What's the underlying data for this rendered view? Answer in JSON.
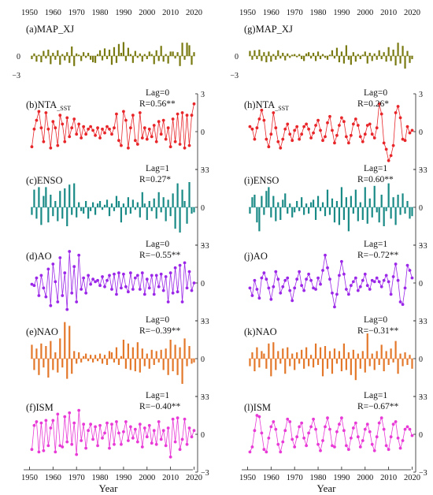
{
  "figure": {
    "x_tick_labels": [
      "1950",
      "1960",
      "1970",
      "1980",
      "1990",
      "2000",
      "2010",
      "2020"
    ],
    "xlabel": "Year"
  },
  "chart_data": [
    {
      "id": "a",
      "col": 0,
      "row": 0,
      "type": "bar",
      "label": "(a)MAP_XJ",
      "color": "#7a7a12",
      "xlim": [
        1950,
        2020
      ],
      "ylim": [
        -3,
        3
      ],
      "x_start": 1951,
      "values": [
        -0.5,
        0.4,
        -0.9,
        0.2,
        -1.0,
        0.8,
        -0.4,
        1.0,
        -1.3,
        0.5,
        -0.6,
        0.9,
        -1.4,
        0.3,
        -0.7,
        0.6,
        -1.1,
        1.5,
        -1.6,
        0.4,
        0.2,
        -0.8,
        0.6,
        -0.3,
        0.5,
        -0.6,
        -1.0,
        -1.1,
        0.3,
        0.9,
        -0.7,
        1.2,
        -0.5,
        1.0,
        -1.4,
        1.4,
        -1.1,
        1.9,
        0.5,
        2.2,
        -0.8,
        1.3,
        0.3,
        -1.1,
        0.8,
        -0.3,
        0.4,
        -0.9,
        0.3,
        -0.5,
        0.7,
        0.3,
        -1.3,
        0.9,
        -0.8,
        1.6,
        -0.9,
        0.3,
        -1.2,
        0.7,
        0.7,
        -0.4,
        0.6,
        -1.6,
        2.1,
        -0.6,
        2.1,
        1.7,
        -1.4,
        0.6
      ]
    },
    {
      "id": "b",
      "col": 0,
      "row": 1,
      "type": "line",
      "label": "(b)NTA_SST",
      "lag": "Lag=0",
      "r": "R=0.56**",
      "color": "#e8262a",
      "xlim": [
        1950,
        2020
      ],
      "ylim": [
        -3,
        3
      ],
      "x_start": 1951,
      "values": [
        -1.2,
        0.2,
        0.9,
        1.6,
        0.3,
        -0.8,
        1.5,
        0.2,
        -1.3,
        0.8,
        0.3,
        -1.1,
        1.3,
        0.6,
        -0.8,
        1.1,
        -0.4,
        0.3,
        1.0,
        -0.2,
        0.6,
        -0.5,
        0.4,
        -0.2,
        0.2,
        0.4,
        0.1,
        -0.3,
        0.3,
        -0.5,
        0.2,
        -0.1,
        0.4,
        0.2,
        -0.2,
        0.3,
        1.4,
        -0.7,
        -1.1,
        1.6,
        0.9,
        -1.3,
        0.3,
        1.3,
        -0.7,
        -1.0,
        1.5,
        -0.5,
        0.3,
        -0.6,
        0.2,
        -0.4,
        0.5,
        -0.8,
        0.8,
        -0.2,
        0.9,
        -0.6,
        0.3,
        -1.2,
        1.0,
        -0.8,
        1.4,
        -1.0,
        1.5,
        -1.3,
        1.3,
        -1.1,
        1.3,
        2.2
      ]
    },
    {
      "id": "c",
      "col": 0,
      "row": 2,
      "type": "bar",
      "label": "(c)ENSO",
      "lag": "Lag=1",
      "r": "R=0.27*",
      "color": "#1a8a86",
      "xlim": [
        1950,
        2020
      ],
      "ylim": [
        -3,
        3
      ],
      "x_start": 1951,
      "values": [
        -0.6,
        1.4,
        -0.9,
        1.6,
        -1.4,
        0.9,
        1.6,
        -1.2,
        1.0,
        -0.7,
        0.5,
        -1.1,
        1.3,
        -0.9,
        1.5,
        -1.5,
        1.8,
        -0.6,
        1.9,
        -0.8,
        0.4,
        -0.3,
        -0.5,
        0.5,
        -0.9,
        -0.3,
        0.4,
        -0.6,
        0.3,
        0.5,
        -0.2,
        0.2,
        0.6,
        -0.7,
        0.3,
        -0.3,
        0.9,
        0.5,
        -1.2,
        0.3,
        -0.6,
        0.8,
        -0.5,
        0.6,
        -0.2,
        0.4,
        -0.8,
        1.2,
        0.3,
        -1.0,
        0.5,
        -0.3,
        0.7,
        -0.9,
        1.2,
        -0.4,
        0.8,
        -1.1,
        0.6,
        -0.7,
        1.1,
        -1.7,
        1.9,
        -2.0,
        1.4,
        0.5,
        -1.3,
        2.0,
        -0.5,
        -0.4
      ]
    },
    {
      "id": "d",
      "col": 0,
      "row": 3,
      "type": "line",
      "label": "(d)AO",
      "lag": "Lag=0",
      "r": "R=−0.55**",
      "color": "#9b27e8",
      "xlim": [
        1950,
        2020
      ],
      "ylim": [
        -3,
        3
      ],
      "x_start": 1951,
      "values": [
        -0.1,
        -0.2,
        0.4,
        -1.0,
        0.6,
        -0.4,
        -1.1,
        1.1,
        -1.8,
        1.5,
        0.1,
        -1.5,
        2.0,
        -1.0,
        0.8,
        -2.1,
        2.5,
        -0.8,
        1.3,
        -1.5,
        2.2,
        -0.5,
        0.4,
        -0.8,
        0.6,
        -0.1,
        0.3,
        0.1,
        0.2,
        -0.2,
        0.5,
        -0.3,
        0.2,
        0.6,
        -0.5,
        0.7,
        -0.9,
        0.8,
        -0.4,
        0.7,
        -0.3,
        -0.7,
        0.8,
        -0.5,
        0.4,
        0.6,
        -0.5,
        0.8,
        -0.9,
        0.3,
        -0.4,
        0.6,
        -0.9,
        0.6,
        -0.3,
        0.7,
        -0.6,
        0.5,
        -1.5,
        0.8,
        -0.8,
        1.2,
        -0.7,
        1.4,
        -1.5,
        1.6,
        -0.4,
        0.9,
        -0.6,
        0.0
      ]
    },
    {
      "id": "e",
      "col": 0,
      "row": 4,
      "type": "bar",
      "label": "(e)NAO",
      "lag": "Lag=0",
      "r": "R=−0.39**",
      "color": "#e3782b",
      "xlim": [
        1950,
        2020
      ],
      "ylim": [
        -3,
        3
      ],
      "x_start": 1951,
      "values": [
        1.1,
        -0.9,
        0.8,
        -1.3,
        1.2,
        -0.7,
        1.0,
        -1.5,
        1.4,
        -0.9,
        0.5,
        -1.1,
        1.6,
        -0.7,
        2.9,
        -1.6,
        2.6,
        -1.2,
        0.6,
        -0.4,
        0.5,
        -0.3,
        0.2,
        0.4,
        -0.2,
        0.3,
        -0.3,
        0.3,
        -0.2,
        0.4,
        -0.4,
        0.3,
        -0.5,
        0.6,
        0.5,
        -0.3,
        0.9,
        -0.5,
        0.2,
        1.5,
        -0.8,
        1.2,
        -0.9,
        0.9,
        -1.0,
        1.3,
        -1.1,
        0.8,
        -0.6,
        0.4,
        -0.8,
        0.7,
        -0.5,
        0.6,
        -0.3,
        0.7,
        -0.9,
        0.8,
        -1.3,
        1.5,
        -1.0,
        1.1,
        -1.3,
        0.9,
        -2.0,
        1.6,
        -0.6,
        1.0,
        -0.4,
        -0.3
      ]
    },
    {
      "id": "f",
      "col": 0,
      "row": 5,
      "type": "line",
      "label": "(f)ISM",
      "lag": "Lag=1",
      "r": "R=−0.40**",
      "color": "#e83ad6",
      "xlim": [
        1950,
        2020
      ],
      "ylim": [
        -3,
        3
      ],
      "x_start": 1951,
      "values": [
        -1.2,
        0.7,
        1.0,
        -1.4,
        0.9,
        -1.3,
        1.1,
        -0.9,
        0.5,
        1.1,
        -1.4,
        1.6,
        -0.9,
        -1.0,
        1.4,
        -0.6,
        1.7,
        -0.8,
        0.9,
        -1.6,
        1.9,
        -0.5,
        0.8,
        -1.1,
        0.3,
        0.8,
        -0.4,
        0.6,
        -0.9,
        0.7,
        -0.3,
        0.1,
        0.9,
        -1.1,
        0.8,
        -0.8,
        1.0,
        0.1,
        -0.8,
        0.2,
        1.0,
        -0.5,
        0.6,
        -0.3,
        0.4,
        -0.6,
        0.8,
        -1.0,
        0.5,
        -0.2,
        0.7,
        -0.7,
        0.3,
        -0.8,
        1.0,
        -0.4,
        0.3,
        -0.9,
        0.5,
        -1.8,
        1.2,
        -0.6,
        1.3,
        -1.2,
        -0.4,
        1.2,
        -0.8,
        0.5,
        -0.2,
        0.3
      ]
    },
    {
      "id": "g",
      "col": 1,
      "row": 0,
      "type": "bar",
      "label": "(g)MAP_XJ",
      "color": "#7a7a12",
      "xlim": [
        1950,
        2020
      ],
      "ylim": [
        -3,
        3
      ],
      "x_start": 1951,
      "values": [
        0.8,
        -0.6,
        0.9,
        -0.5,
        1.0,
        -0.8,
        0.6,
        -1.0,
        0.7,
        -0.9,
        0.3,
        -0.6,
        0.9,
        -0.4,
        0.5,
        -0.7,
        0.4,
        -0.3,
        0.2,
        0.3,
        -0.2,
        0.3,
        -0.5,
        -0.8,
        0.4,
        0.6,
        -0.4,
        0.5,
        -0.8,
        0.7,
        -0.5,
        0.3,
        -0.3,
        -0.6,
        0.2,
        0.9,
        -0.4,
        1.3,
        -1.0,
        0.7,
        -1.2,
        1.7,
        -0.6,
        -1.4,
        0.6,
        -0.9,
        0.3,
        -0.5,
        0.2,
        0.7,
        -1.2,
        0.5,
        -0.8,
        0.4,
        -0.6,
        0.9,
        -0.5,
        0.6,
        -0.9,
        1.4,
        -0.8,
        1.0,
        -1.5,
        2.1,
        -1.2,
        1.6,
        -2.0,
        0.8,
        -1.1,
        -0.5
      ]
    },
    {
      "id": "h",
      "col": 1,
      "row": 1,
      "type": "line",
      "label": "(h)NTA_SST",
      "lag": "Lag=0",
      "r": "R=0.26*",
      "color": "#e8262a",
      "xlim": [
        1950,
        2020
      ],
      "ylim": [
        -3,
        3
      ],
      "x_start": 1951,
      "values": [
        0.4,
        0.2,
        -0.6,
        0.3,
        1.0,
        1.7,
        0.9,
        -0.6,
        -1.2,
        -0.2,
        1.5,
        0.3,
        -0.8,
        -1.3,
        -0.6,
        0.2,
        0.6,
        -0.2,
        -0.7,
        0.1,
        0.4,
        -0.6,
        -0.2,
        0.4,
        0.6,
        0.2,
        -0.5,
        -0.1,
        0.5,
        0.9,
        0.1,
        -0.7,
        -0.4,
        0.7,
        1.2,
        0.1,
        -0.9,
        -0.3,
        0.5,
        1.1,
        0.8,
        -0.4,
        -0.9,
        -0.3,
        0.6,
        1.0,
        0.5,
        -0.4,
        -0.8,
        -0.2,
        0.5,
        0.6,
        -0.2,
        -0.5,
        0.3,
        2.2,
        1.4,
        -0.9,
        -1.4,
        -2.3,
        -1.9,
        -1.1,
        1.5,
        2.0,
        1.1,
        -0.6,
        -0.7,
        0.4,
        -0.1,
        0.1
      ]
    },
    {
      "id": "i",
      "col": 1,
      "row": 2,
      "type": "bar",
      "label": "(i)ENSO",
      "lag": "Lag=1",
      "r": "R=0.60**",
      "color": "#1a8a86",
      "xlim": [
        1950,
        2020
      ],
      "ylim": [
        -3,
        3
      ],
      "x_start": 1951,
      "values": [
        -0.5,
        0.8,
        1.0,
        -1.2,
        -1.9,
        0.9,
        -0.6,
        1.3,
        1.6,
        -0.8,
        0.9,
        -1.1,
        0.4,
        -1.0,
        0.6,
        1.1,
        -0.5,
        0.3,
        -0.8,
        -0.4,
        0.5,
        -0.3,
        0.8,
        -0.6,
        0.3,
        -0.5,
        0.4,
        0.6,
        -1.0,
        0.9,
        -0.3,
        0.4,
        -0.7,
        1.4,
        -0.6,
        0.7,
        -1.2,
        0.5,
        -1.4,
        1.6,
        -1.0,
        0.8,
        -1.9,
        0.9,
        -0.5,
        1.4,
        -1.1,
        0.4,
        -1.0,
        1.6,
        -1.3,
        0.7,
        -0.8,
        1.7,
        -0.4,
        -1.2,
        1.0,
        -1.5,
        -0.3,
        1.9,
        -0.9,
        0.8,
        -1.4,
        1.0,
        -0.6,
        1.1,
        -0.5,
        0.5,
        -0.9,
        -0.7
      ]
    },
    {
      "id": "j",
      "col": 1,
      "row": 3,
      "type": "line",
      "label": "(j)AO",
      "lag": "Lag=1",
      "r": "R=−0.72**",
      "color": "#9b27e8",
      "xlim": [
        1950,
        2020
      ],
      "ylim": [
        -3,
        3
      ],
      "x_start": 1951,
      "values": [
        -0.4,
        -1.0,
        0.2,
        -0.5,
        -1.2,
        0.4,
        0.8,
        0.3,
        -0.4,
        -1.3,
        -0.3,
        0.9,
        0.3,
        -0.8,
        -0.3,
        0.2,
        0.4,
        -0.6,
        -1.4,
        -0.4,
        0.3,
        0.9,
        -0.2,
        -0.6,
        0.3,
        0.7,
        0.2,
        -0.4,
        -0.5,
        0.4,
        -0.1,
        1.0,
        2.2,
        1.2,
        0.3,
        -0.8,
        -1.9,
        -0.9,
        0.6,
        1.7,
        0.7,
        -0.5,
        -0.9,
        -0.2,
        0.1,
        0.4,
        -0.6,
        -0.3,
        0.2,
        0.7,
        -0.2,
        -0.5,
        0.2,
        0.1,
        0.4,
        0.1,
        -0.3,
        0.2,
        0.6,
        0.1,
        -0.9,
        0.5,
        1.5,
        0.2,
        -1.5,
        -1.7,
        -0.4,
        1.4,
        1.0,
        0.4
      ]
    },
    {
      "id": "k",
      "col": 1,
      "row": 4,
      "type": "bar",
      "label": "(k)NAO",
      "lag": "Lag=0",
      "r": "R=−0.31**",
      "color": "#e3782b",
      "xlim": [
        1950,
        2020
      ],
      "ylim": [
        -3,
        3
      ],
      "x_start": 1951,
      "values": [
        -0.6,
        0.5,
        -1.0,
        0.9,
        -0.7,
        0.6,
        0.4,
        -0.8,
        1.2,
        -1.4,
        1.3,
        -0.9,
        0.6,
        -0.4,
        0.8,
        -1.2,
        0.9,
        -0.6,
        0.4,
        -0.9,
        0.5,
        -0.4,
        0.7,
        -0.8,
        0.9,
        -0.6,
        0.3,
        -0.7,
        1.2,
        -0.5,
        0.9,
        -1.4,
        1.0,
        -0.8,
        0.6,
        -1.2,
        0.8,
        -0.4,
        0.6,
        -1.0,
        1.2,
        -0.9,
        0.5,
        -1.3,
        0.7,
        -1.7,
        0.4,
        -0.8,
        0.6,
        -1.1,
        2.0,
        -0.6,
        0.4,
        -0.9,
        0.6,
        -0.5,
        1.1,
        -1.0,
        0.6,
        -0.5,
        0.8,
        -0.3,
        1.4,
        -1.2,
        0.4,
        -0.6,
        0.5,
        -0.5,
        0.3,
        -0.8
      ]
    },
    {
      "id": "l",
      "col": 1,
      "row": 5,
      "type": "line",
      "label": "(l)ISM",
      "lag": "Lag=1",
      "r": "R=−0.67**",
      "color": "#e83ad6",
      "xlim": [
        1950,
        2020
      ],
      "ylim": [
        -3,
        3
      ],
      "x_start": 1951,
      "values": [
        -1.4,
        -1.0,
        0.3,
        1.5,
        1.4,
        0.1,
        -1.2,
        -1.4,
        -0.3,
        0.6,
        1.0,
        0.4,
        -0.8,
        -1.4,
        -0.6,
        0.3,
        1.2,
        1.0,
        -0.4,
        -1.0,
        -0.2,
        0.6,
        0.9,
        -0.3,
        -0.9,
        0.1,
        0.6,
        1.2,
        0.4,
        -0.8,
        -1.3,
        -0.5,
        0.6,
        1.3,
        0.4,
        -0.9,
        -1.0,
        0.2,
        0.8,
        1.3,
        0.3,
        -0.9,
        -1.2,
        -0.3,
        0.5,
        0.9,
        -0.2,
        -1.0,
        -0.5,
        0.4,
        0.8,
        0.2,
        -0.8,
        -1.3,
        -0.2,
        0.9,
        1.3,
        0.4,
        -0.9,
        -1.2,
        -0.2,
        0.8,
        1.0,
        -0.3,
        -1.1,
        -0.5,
        0.4,
        0.6,
        0.4,
        -0.1
      ]
    }
  ]
}
